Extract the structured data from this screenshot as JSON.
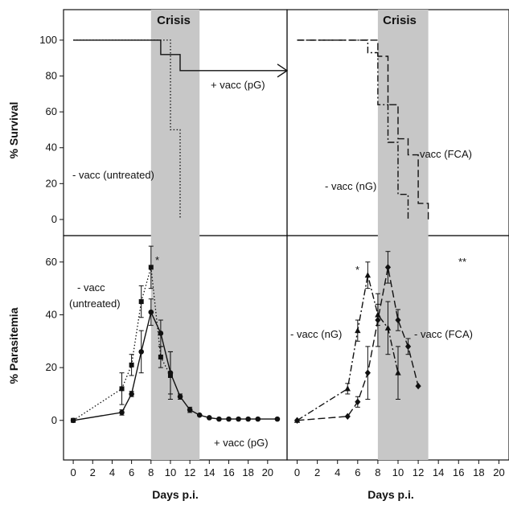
{
  "chart_data": [
    {
      "panel": "top-left",
      "type": "line",
      "ylabel": "% Survival",
      "ylim": [
        0,
        100
      ],
      "xlim": [
        0,
        22
      ],
      "shaded_band": {
        "x": [
          8,
          13
        ],
        "label": "Crisis"
      },
      "series": [
        {
          "name": "+ vacc (pG)",
          "style": "solid",
          "step": true,
          "x": [
            0,
            9,
            9,
            10,
            10,
            11,
            11,
            22
          ],
          "y": [
            100,
            100,
            92,
            92,
            92,
            92,
            83,
            83
          ]
        },
        {
          "name": "- vacc (untreated)",
          "style": "dotted",
          "step": true,
          "x": [
            0,
            10,
            10,
            11,
            11
          ],
          "y": [
            100,
            100,
            50,
            50,
            0
          ]
        }
      ]
    },
    {
      "panel": "top-right",
      "type": "line",
      "ylim": [
        0,
        100
      ],
      "xlim": [
        0,
        21
      ],
      "shaded_band": {
        "x": [
          8,
          13
        ],
        "label": "Crisis"
      },
      "series": [
        {
          "name": "- vacc (nG)",
          "style": "dash-dot",
          "step": true,
          "x": [
            0,
            7,
            7,
            8,
            8,
            9,
            9,
            10,
            10,
            11,
            11
          ],
          "y": [
            100,
            100,
            93,
            93,
            64,
            64,
            43,
            43,
            14,
            14,
            0
          ]
        },
        {
          "name": "- vacc (FCA)",
          "style": "dashed",
          "step": true,
          "x": [
            0,
            8,
            8,
            9,
            9,
            10,
            10,
            11,
            11,
            12,
            12,
            13,
            13
          ],
          "y": [
            100,
            100,
            91,
            91,
            64,
            64,
            45,
            45,
            36,
            36,
            9,
            9,
            0
          ]
        }
      ]
    },
    {
      "panel": "bottom-left",
      "type": "line",
      "xlabel": "Days p.i.",
      "ylabel": "% Parasitemia",
      "ylim": [
        -15,
        70
      ],
      "xlim": [
        -1,
        22
      ],
      "shaded_band": {
        "x": [
          8,
          13
        ]
      },
      "series": [
        {
          "name": "+ vacc (pG)",
          "style": "solid",
          "marker": "circle",
          "x": [
            0,
            5,
            6,
            7,
            8,
            9,
            10,
            11,
            12,
            13,
            14,
            15,
            16,
            17,
            18,
            19,
            21
          ],
          "y": [
            0,
            3,
            10,
            26,
            41,
            33,
            18,
            9,
            4,
            2,
            1,
            0.5,
            0.5,
            0.5,
            0.5,
            0.5,
            0.5
          ],
          "err": [
            0,
            1,
            1,
            8,
            5,
            5,
            8,
            1,
            1,
            0,
            0,
            0,
            0,
            0,
            0,
            0,
            0
          ]
        },
        {
          "name": "- vacc (untreated)",
          "style": "dotted",
          "marker": "square",
          "x": [
            0,
            5,
            6,
            7,
            8,
            9,
            10
          ],
          "y": [
            0,
            12,
            21,
            45,
            58,
            24,
            17
          ],
          "err": [
            0,
            6,
            4,
            6,
            8,
            4,
            9
          ]
        }
      ],
      "annotations": [
        "*"
      ]
    },
    {
      "panel": "bottom-right",
      "type": "line",
      "xlabel": "Days p.i.",
      "ylim": [
        -15,
        70
      ],
      "xlim": [
        -1,
        21
      ],
      "shaded_band": {
        "x": [
          8,
          13
        ]
      },
      "series": [
        {
          "name": "- vacc (nG)",
          "style": "dash-dot",
          "marker": "triangle",
          "x": [
            0,
            5,
            6,
            7,
            8,
            9,
            10
          ],
          "y": [
            0,
            12,
            34,
            55,
            40,
            35,
            18
          ],
          "err": [
            0,
            2,
            4,
            5,
            4,
            10,
            10
          ]
        },
        {
          "name": "- vacc (FCA)",
          "style": "dashed",
          "marker": "diamond",
          "x": [
            0,
            5,
            6,
            7,
            8,
            9,
            10,
            11,
            12
          ],
          "y": [
            0,
            1.5,
            7,
            18,
            38,
            58,
            38,
            28,
            13
          ],
          "err": [
            0,
            0,
            2,
            10,
            10,
            6,
            4,
            3,
            0
          ]
        }
      ],
      "annotations": [
        "*",
        "**"
      ]
    }
  ],
  "labels": {
    "crisis": "Crisis",
    "survival_ylabel": "% Survival",
    "parasitemia_ylabel": "% Parasitemia",
    "xlabel": "Days p.i.",
    "pg": "+ vacc (pG)",
    "untreated_top": "- vacc (untreated)",
    "untreated_bottom_1": "- vacc",
    "untreated_bottom_2": "(untreated)",
    "ng": "- vacc (nG)",
    "fca": "- vacc (FCA)",
    "star1": "*",
    "star2": "**"
  }
}
